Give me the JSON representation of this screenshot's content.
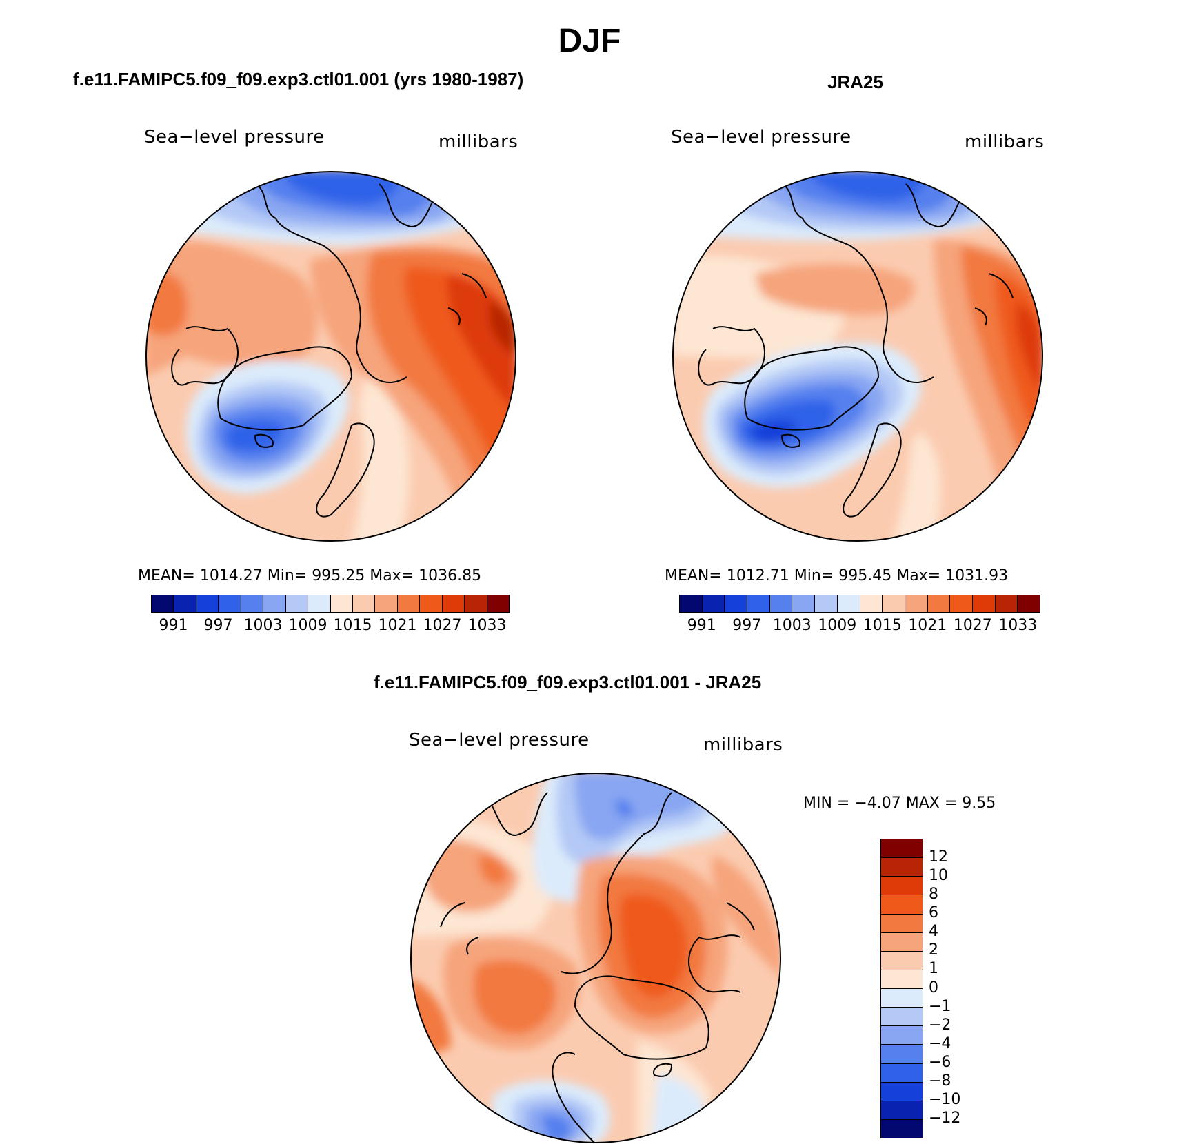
{
  "season_title": "DJF",
  "panels": [
    {
      "id": "model",
      "title": "f.e11.FAMIPC5.f09_f09.exp3.ctl01.001 (yrs 1980-1987)",
      "field_label": "Sea−level pressure",
      "units_label": "millibars",
      "stats_text": "MEAN=  1014.27    Min=  995.25    Max=  1036.85",
      "colorbar_ticks": [
        "991",
        "997",
        "1003",
        "1009",
        "1015",
        "1021",
        "1027",
        "1033"
      ]
    },
    {
      "id": "obs",
      "title": "JRA25",
      "field_label": "Sea−level pressure",
      "units_label": "millibars",
      "stats_text": "MEAN=  1012.71    Min=  995.45    Max=  1031.93",
      "colorbar_ticks": [
        "991",
        "997",
        "1003",
        "1009",
        "1015",
        "1021",
        "1027",
        "1033"
      ]
    }
  ],
  "difference_panel": {
    "title": "f.e11.FAMIPC5.f09_f09.exp3.ctl01.001 - JRA25",
    "field_label": "Sea−level pressure",
    "units_label": "millibars",
    "minmax_text": "MIN  =    −4.07  MAX  =      9.55",
    "colorbar_ticks": [
      "12",
      "10",
      "8",
      "6",
      "4",
      "2",
      "1",
      "0",
      "−1",
      "−2",
      "−4",
      "−6",
      "−8",
      "−10",
      "−12"
    ]
  },
  "colors": {
    "abs_scale": [
      "#020870",
      "#0a22b0",
      "#1540d9",
      "#2f62e8",
      "#5580ee",
      "#88a6f2",
      "#b4c9f6",
      "#dcebfb",
      "#fde6d3",
      "#fbcbb0",
      "#f6a47c",
      "#f2793f",
      "#ef5a1b",
      "#de3b08",
      "#b82505",
      "#800000"
    ],
    "diff_scale": [
      "#800000",
      "#b82505",
      "#de3b08",
      "#ef5a1b",
      "#f2793f",
      "#f6a47c",
      "#fbcbb0",
      "#fde6d3",
      "#dcebfb",
      "#b4c9f6",
      "#88a6f2",
      "#5580ee",
      "#2f62e8",
      "#1540d9",
      "#0a22b0",
      "#020870"
    ]
  }
}
